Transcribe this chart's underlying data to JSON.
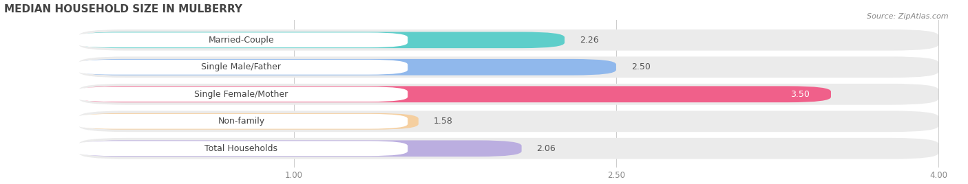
{
  "title": "MEDIAN HOUSEHOLD SIZE IN MULBERRY",
  "source": "Source: ZipAtlas.com",
  "categories": [
    "Married-Couple",
    "Single Male/Father",
    "Single Female/Mother",
    "Non-family",
    "Total Households"
  ],
  "values": [
    2.26,
    2.5,
    3.5,
    1.58,
    2.06
  ],
  "bar_colors": [
    "#5ececa",
    "#90b8ec",
    "#f0608a",
    "#f5cfa0",
    "#bbaee0"
  ],
  "xmin": 0.0,
  "xmax": 4.0,
  "xaxis_min": 1.0,
  "xticks": [
    1.0,
    2.5,
    4.0
  ],
  "xtick_labels": [
    "1.00",
    "2.50",
    "4.00"
  ],
  "title_fontsize": 11,
  "label_fontsize": 9,
  "value_fontsize": 9,
  "bg_color": "#ffffff",
  "bar_height": 0.6,
  "bar_bg_color": "#ebebeb",
  "label_box_color": "#ffffff",
  "value_label_color_inside": "#ffffff",
  "value_label_color_outside": "#555555"
}
